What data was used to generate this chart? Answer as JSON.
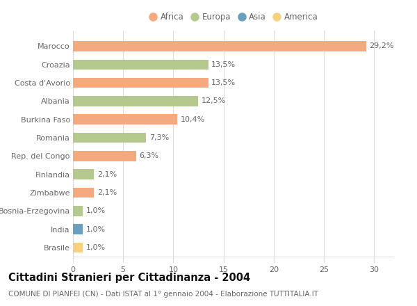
{
  "countries": [
    "Marocco",
    "Croazia",
    "Costa d'Avorio",
    "Albania",
    "Burkina Faso",
    "Romania",
    "Rep. del Congo",
    "Finlandia",
    "Zimbabwe",
    "Bosnia-Erzegovina",
    "India",
    "Brasile"
  ],
  "values": [
    29.2,
    13.5,
    13.5,
    12.5,
    10.4,
    7.3,
    6.3,
    2.1,
    2.1,
    1.0,
    1.0,
    1.0
  ],
  "labels": [
    "29,2%",
    "13,5%",
    "13,5%",
    "12,5%",
    "10,4%",
    "7,3%",
    "6,3%",
    "2,1%",
    "2,1%",
    "1,0%",
    "1,0%",
    "1,0%"
  ],
  "continents": [
    "Africa",
    "Europa",
    "Africa",
    "Europa",
    "Africa",
    "Europa",
    "Africa",
    "Europa",
    "Africa",
    "Europa",
    "Asia",
    "America"
  ],
  "colors": {
    "Africa": "#F4A97F",
    "Europa": "#B5C98E",
    "Asia": "#6B9FBF",
    "America": "#F7D080"
  },
  "legend_order": [
    "Africa",
    "Europa",
    "Asia",
    "America"
  ],
  "title": "Cittadini Stranieri per Cittadinanza - 2004",
  "subtitle": "COMUNE DI PIANFEI (CN) - Dati ISTAT al 1° gennaio 2004 - Elaborazione TUTTITALIA.IT",
  "xlim": [
    0,
    32
  ],
  "xticks": [
    0,
    5,
    10,
    15,
    20,
    25,
    30
  ],
  "bg_color": "#ffffff",
  "grid_color": "#dddddd",
  "bar_height": 0.55,
  "label_fontsize": 8,
  "tick_fontsize": 8,
  "title_fontsize": 10.5,
  "subtitle_fontsize": 7.5
}
